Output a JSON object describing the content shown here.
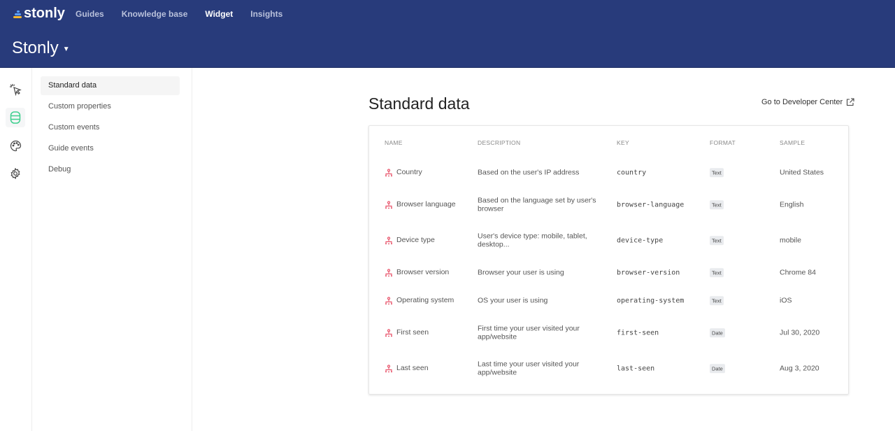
{
  "header": {
    "logo": "stonly",
    "nav": [
      "Guides",
      "Knowledge base",
      "Widget",
      "Insights"
    ],
    "active_nav": "Widget",
    "project": "Stonly"
  },
  "colors": {
    "header_bg": "#283b7b",
    "accent_green": "#3ecf8e",
    "icon_pink": "#e8546b"
  },
  "rail": [
    "cursor-click-icon",
    "database-icon",
    "palette-icon",
    "gear-icon"
  ],
  "submenu": [
    "Standard data",
    "Custom properties",
    "Custom events",
    "Guide events",
    "Debug"
  ],
  "main": {
    "title": "Standard data",
    "developer_link": "Go to Developer Center"
  },
  "table": {
    "columns": [
      "NAME",
      "DESCRIPTION",
      "KEY",
      "FORMAT",
      "SAMPLE"
    ],
    "rows": [
      {
        "name": "Country",
        "description": "Based on the user's IP address",
        "key": "country",
        "format": "Text",
        "sample": "United States"
      },
      {
        "name": "Browser language",
        "description": "Based on the language set by user's browser",
        "key": "browser-language",
        "format": "Text",
        "sample": "English"
      },
      {
        "name": "Device type",
        "description": "User's device type: mobile, tablet, desktop...",
        "key": "device-type",
        "format": "Text",
        "sample": "mobile"
      },
      {
        "name": "Browser version",
        "description": "Browser your user is using",
        "key": "browser-version",
        "format": "Text",
        "sample": "Chrome 84"
      },
      {
        "name": "Operating system",
        "description": "OS your user is using",
        "key": "operating-system",
        "format": "Text",
        "sample": "iOS"
      },
      {
        "name": "First seen",
        "description": "First time your user visited your app/website",
        "key": "first-seen",
        "format": "Date",
        "sample": "Jul 30, 2020"
      },
      {
        "name": "Last seen",
        "description": "Last time your user visited your app/website",
        "key": "last-seen",
        "format": "Date",
        "sample": "Aug 3, 2020"
      }
    ]
  }
}
